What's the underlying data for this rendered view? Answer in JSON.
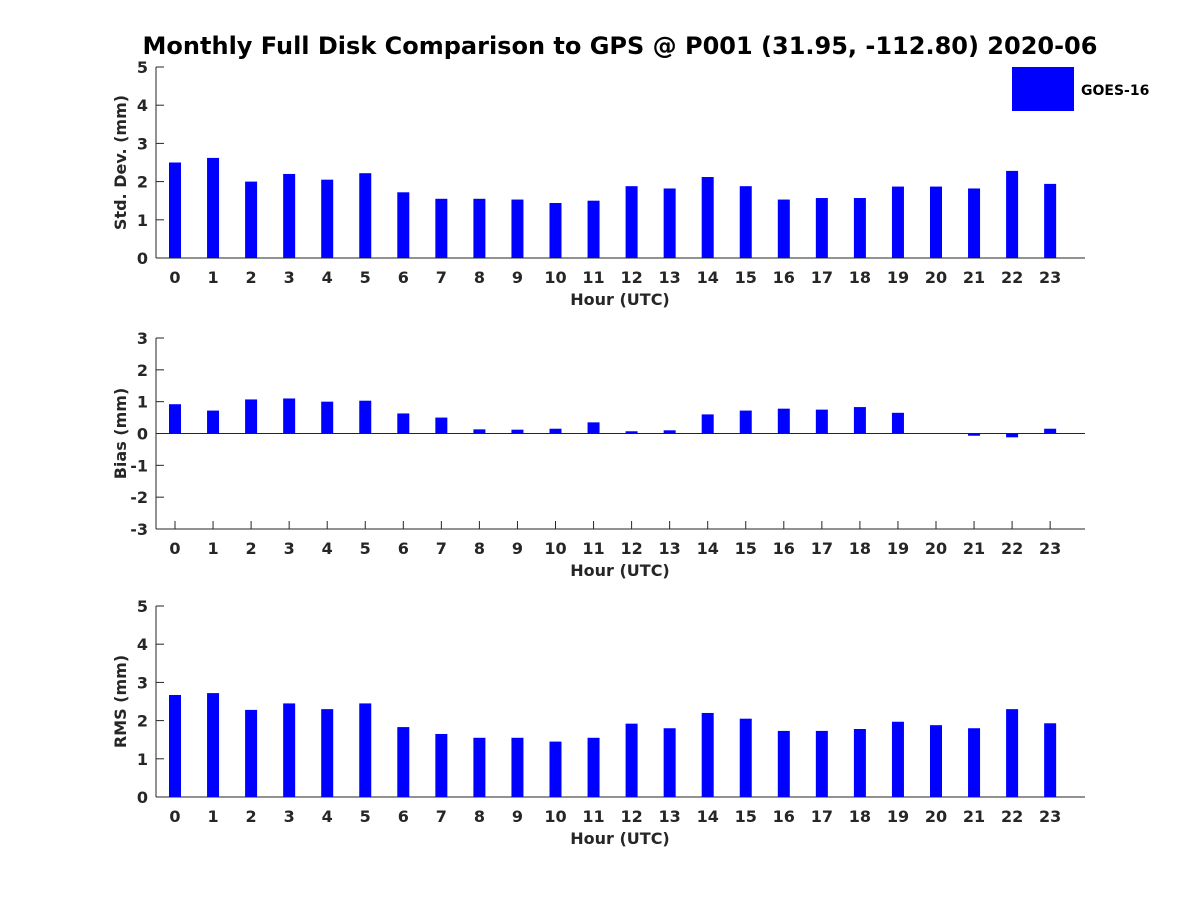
{
  "title": "Monthly Full Disk Comparison to GPS @ P001 (31.95, -112.80) 2020-06",
  "legend": {
    "label": "GOES-16",
    "position": "top-right"
  },
  "colors": {
    "bar": "#0000ff",
    "axis": "#262626"
  },
  "chart_data": [
    {
      "type": "bar",
      "xlabel": "Hour (UTC)",
      "ylabel": "Std. Dev. (mm)",
      "ylim": [
        0,
        5
      ],
      "yticks": [
        0,
        1,
        2,
        3,
        4,
        5
      ],
      "categories": [
        "0",
        "1",
        "2",
        "3",
        "4",
        "5",
        "6",
        "7",
        "8",
        "9",
        "10",
        "11",
        "12",
        "13",
        "14",
        "15",
        "16",
        "17",
        "18",
        "19",
        "20",
        "21",
        "22",
        "23"
      ],
      "series": [
        {
          "name": "GOES-16",
          "values": [
            2.5,
            2.62,
            2.0,
            2.2,
            2.05,
            2.22,
            1.72,
            1.55,
            1.55,
            1.53,
            1.44,
            1.5,
            1.88,
            1.82,
            2.12,
            1.88,
            1.53,
            1.57,
            1.57,
            1.87,
            1.87,
            1.82,
            2.28,
            1.94
          ]
        }
      ]
    },
    {
      "type": "bar",
      "xlabel": "Hour (UTC)",
      "ylabel": "Bias (mm)",
      "ylim": [
        -3,
        3
      ],
      "yticks": [
        -3,
        -2,
        -1,
        0,
        1,
        2,
        3
      ],
      "categories": [
        "0",
        "1",
        "2",
        "3",
        "4",
        "5",
        "6",
        "7",
        "8",
        "9",
        "10",
        "11",
        "12",
        "13",
        "14",
        "15",
        "16",
        "17",
        "18",
        "19",
        "20",
        "21",
        "22",
        "23"
      ],
      "series": [
        {
          "name": "GOES-16",
          "values": [
            0.92,
            0.72,
            1.07,
            1.1,
            1.0,
            1.03,
            0.63,
            0.5,
            0.13,
            0.12,
            0.15,
            0.35,
            0.07,
            0.1,
            0.6,
            0.72,
            0.78,
            0.75,
            0.83,
            0.65,
            0.0,
            -0.07,
            -0.12,
            0.15
          ]
        }
      ]
    },
    {
      "type": "bar",
      "xlabel": "Hour (UTC)",
      "ylabel": "RMS (mm)",
      "ylim": [
        0,
        5
      ],
      "yticks": [
        0,
        1,
        2,
        3,
        4,
        5
      ],
      "categories": [
        "0",
        "1",
        "2",
        "3",
        "4",
        "5",
        "6",
        "7",
        "8",
        "9",
        "10",
        "11",
        "12",
        "13",
        "14",
        "15",
        "16",
        "17",
        "18",
        "19",
        "20",
        "21",
        "22",
        "23"
      ],
      "series": [
        {
          "name": "GOES-16",
          "values": [
            2.67,
            2.72,
            2.28,
            2.45,
            2.3,
            2.45,
            1.83,
            1.65,
            1.55,
            1.55,
            1.45,
            1.55,
            1.92,
            1.8,
            2.2,
            2.05,
            1.73,
            1.73,
            1.78,
            1.97,
            1.88,
            1.8,
            2.3,
            1.93
          ]
        }
      ]
    }
  ]
}
